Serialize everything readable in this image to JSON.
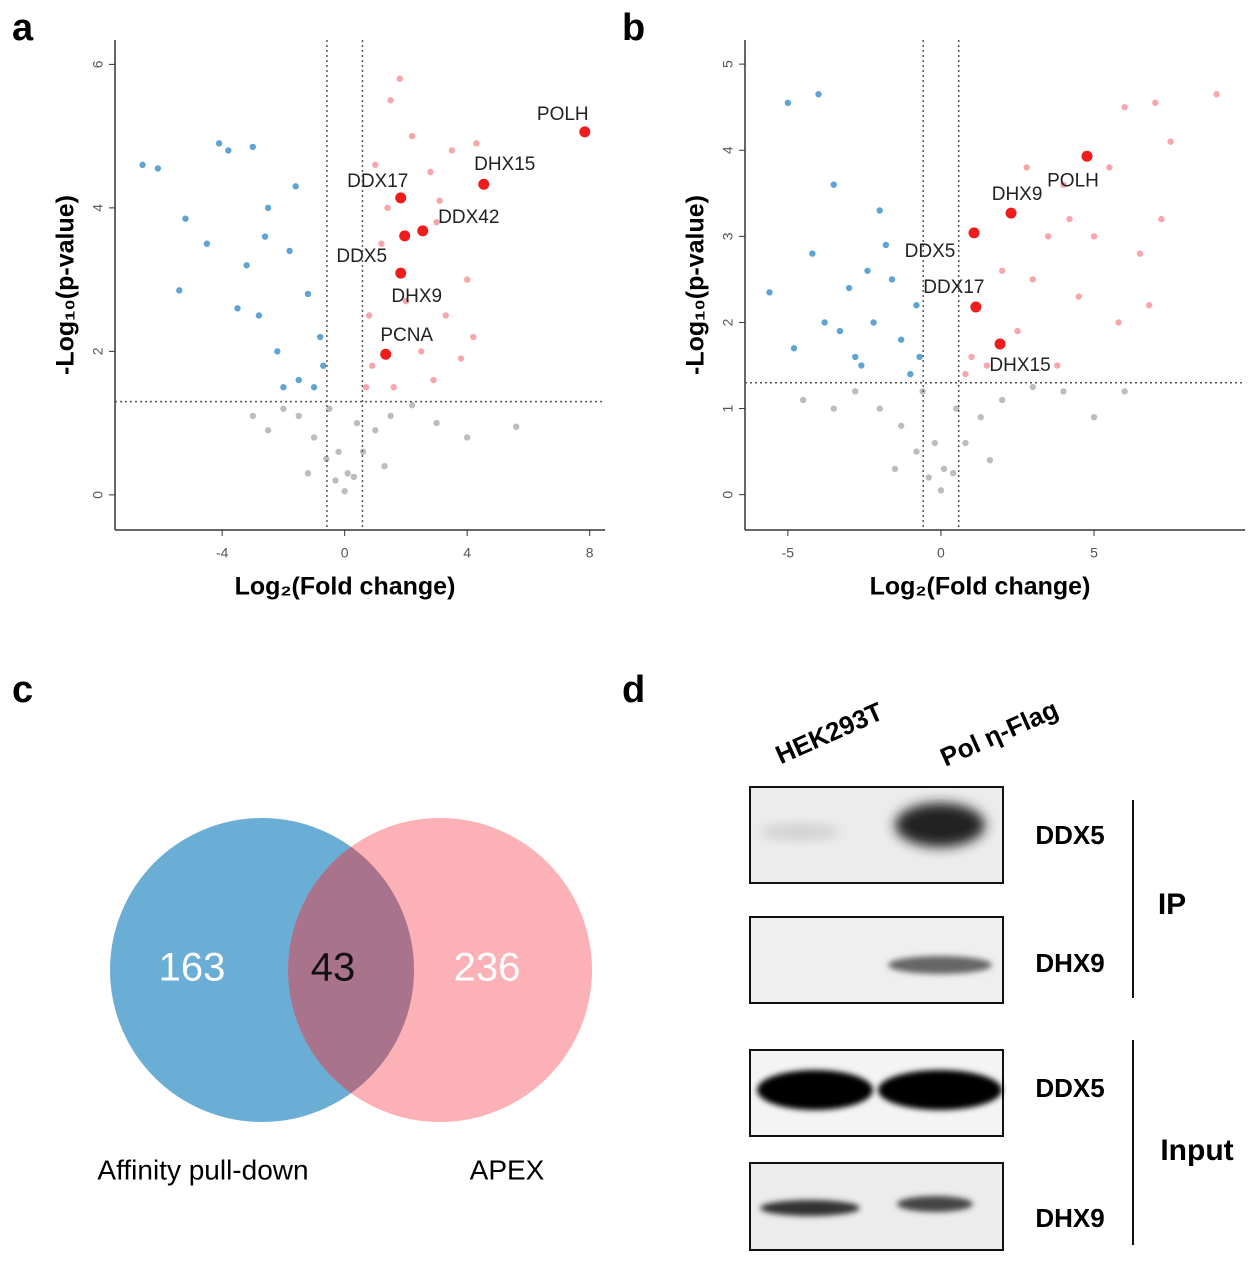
{
  "panel_labels": [
    "a",
    "b",
    "c",
    "d"
  ],
  "chart_data": [
    {
      "type": "scatter",
      "xlabel": "Log₂(Fold change)",
      "ylabel": "-Log₁₀(p-value)",
      "xlim": [
        -7.5,
        8.5
      ],
      "ylim": [
        -0.49,
        6.34
      ],
      "xticks": [
        -4,
        0,
        4,
        8
      ],
      "yticks": [
        0,
        2,
        4,
        6
      ],
      "thresholds": {
        "x": [
          -0.58,
          0.58
        ],
        "y": 1.3
      },
      "series": [
        {
          "color": "#bdbdbd",
          "x": [
            0,
            -0.3,
            0.3,
            -0.6,
            0.6,
            -1,
            1,
            -1.5,
            1.5,
            -2,
            2.2,
            -3,
            3,
            -0.2,
            0.4,
            -1.2,
            1.3,
            4,
            5.6,
            -2.5,
            0.1,
            -0.5
          ],
          "values": [
            0.05,
            0.2,
            0.25,
            0.5,
            0.6,
            0.8,
            0.9,
            1.1,
            1.1,
            1.2,
            1.25,
            1.1,
            1.0,
            0.6,
            1.0,
            0.3,
            0.4,
            0.8,
            0.95,
            0.9,
            0.3,
            1.2
          ]
        },
        {
          "color": "#5fa4d3",
          "x": [
            -6.6,
            -6.1,
            -5.2,
            -5.4,
            -4.5,
            -4.1,
            -3.8,
            -3.0,
            -3.2,
            -2.8,
            -2.5,
            -2.2,
            -1.8,
            -1.5,
            -1.2,
            -1.0,
            -0.8,
            -2.0,
            -3.5,
            -1.6,
            -0.7,
            -2.6
          ],
          "values": [
            4.6,
            4.55,
            3.85,
            2.85,
            3.5,
            4.9,
            4.8,
            4.85,
            3.2,
            2.5,
            4.0,
            2.0,
            3.4,
            1.6,
            2.8,
            1.5,
            2.2,
            1.5,
            2.6,
            4.3,
            1.8,
            3.6
          ]
        },
        {
          "color": "#f7a7ab",
          "x": [
            1.0,
            1.5,
            1.8,
            2.2,
            2.8,
            3.0,
            3.5,
            4.0,
            3.3,
            2.5,
            1.2,
            0.8,
            1.6,
            2.9,
            3.8,
            4.2,
            0.9,
            2.0,
            3.1,
            1.4,
            0.7,
            4.3
          ],
          "values": [
            4.6,
            5.5,
            5.8,
            5.0,
            4.5,
            3.8,
            4.8,
            3.0,
            2.5,
            2.0,
            3.5,
            2.5,
            1.5,
            1.6,
            1.9,
            2.2,
            1.8,
            2.7,
            4.1,
            4.0,
            1.5,
            4.9
          ]
        },
        {
          "color": "#ee1c1c",
          "x": [
            7.84,
            4.54,
            1.83,
            2.55,
            1.96,
            1.83,
            1.34
          ],
          "values": [
            5.06,
            4.33,
            4.14,
            3.68,
            3.61,
            3.09,
            1.96
          ],
          "labels": [
            "POLH",
            "DHX15",
            "DDX17",
            "DDX42",
            "DDX5",
            "DHX9",
            "PCNA"
          ]
        }
      ]
    },
    {
      "type": "scatter",
      "xlabel": "Log₂(Fold change)",
      "ylabel": "-Log₁₀(p-value)",
      "xlim": [
        -6.4,
        9.93
      ],
      "ylim": [
        -0.41,
        5.28
      ],
      "xticks": [
        -5,
        0,
        5
      ],
      "yticks": [
        0,
        1,
        2,
        3,
        4,
        5
      ],
      "thresholds": {
        "x": [
          -0.58,
          0.58
        ],
        "y": 1.3
      },
      "series": [
        {
          "color": "#bdbdbd",
          "x": [
            0,
            -0.4,
            0.4,
            -0.8,
            0.8,
            -1.3,
            1.3,
            -2,
            2,
            -2.8,
            3,
            -3.5,
            4,
            -0.2,
            0.5,
            -1.5,
            1.6,
            5,
            -4.5,
            6,
            0.1,
            -0.6
          ],
          "values": [
            0.05,
            0.2,
            0.25,
            0.5,
            0.6,
            0.8,
            0.9,
            1.0,
            1.1,
            1.2,
            1.25,
            1.0,
            1.2,
            0.6,
            1.0,
            0.3,
            0.4,
            0.9,
            1.1,
            1.2,
            0.3,
            1.2
          ]
        },
        {
          "color": "#5fa4d3",
          "x": [
            -5,
            -4,
            -5.6,
            -4.8,
            -4.2,
            -3.8,
            -3.5,
            -3,
            -2.6,
            -2.2,
            -2,
            -1.6,
            -1.3,
            -1,
            -0.8,
            -2.8,
            -1.8,
            -3.3,
            -0.7,
            -2.4
          ],
          "values": [
            4.55,
            4.65,
            2.35,
            1.7,
            2.8,
            2.0,
            3.6,
            2.4,
            1.5,
            2.0,
            3.3,
            2.5,
            1.8,
            1.4,
            2.2,
            1.6,
            2.9,
            1.9,
            1.6,
            2.6
          ]
        },
        {
          "color": "#f7a7ab",
          "x": [
            9,
            7.5,
            7,
            6,
            5.5,
            4,
            3.5,
            3,
            2.5,
            2,
            1.5,
            1,
            4.5,
            5,
            6.5,
            7.2,
            5.8,
            3.8,
            2.8,
            6.8,
            0.8,
            4.2
          ],
          "values": [
            4.65,
            4.1,
            4.55,
            4.5,
            3.8,
            3.6,
            3.0,
            2.5,
            1.9,
            2.6,
            1.5,
            1.6,
            2.3,
            3.0,
            2.8,
            3.2,
            2.0,
            1.5,
            3.8,
            2.2,
            1.4,
            3.2
          ]
        },
        {
          "color": "#ee1c1c",
          "x": [
            4.77,
            2.29,
            1.08,
            1.14,
            1.93
          ],
          "values": [
            3.93,
            3.27,
            3.04,
            2.18,
            1.75
          ],
          "labels": [
            "POLH",
            "DHX9",
            "DDX5",
            "DDX17",
            "DHX15"
          ]
        }
      ]
    },
    {
      "type": "venn",
      "sets": [
        {
          "name": "Affinity pull-down",
          "color": "#6aaed6"
        },
        {
          "name": "APEX",
          "color": "#fb9ea4"
        }
      ],
      "values": [
        163,
        43,
        236
      ]
    }
  ],
  "blot": {
    "lanes": [
      "HEK293T",
      "Pol η-Flag"
    ],
    "rows": [
      "DDX5",
      "DHX9",
      "DDX5",
      "DHX9"
    ],
    "groups": [
      "IP",
      "Input"
    ]
  }
}
